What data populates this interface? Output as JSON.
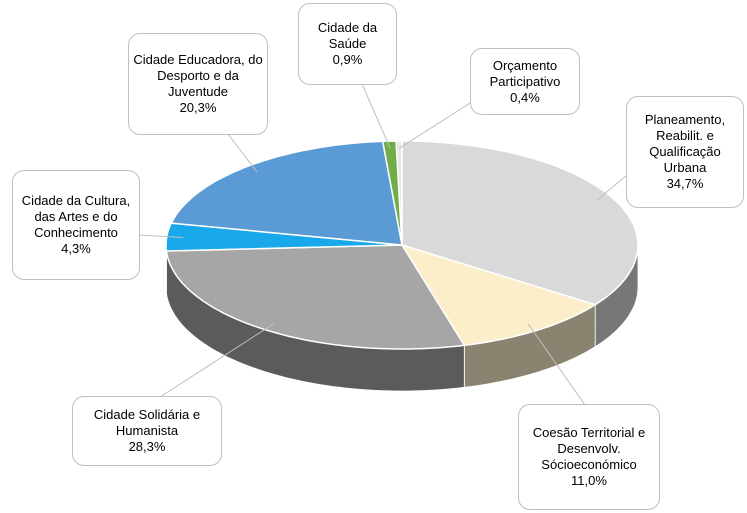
{
  "chart_data": {
    "type": "pie",
    "categories": [
      "Planeamento, Reabilit. e Qualificação Urbana",
      "Coesão Territorial e Desenvolv. Sócioeconómico",
      "Cidade Solidária e Humanista",
      "Cidade da Cultura, das Artes e do Conhecimento",
      "Cidade Educadora, do Desporto e da Juventude",
      "Cidade da Saúde",
      "Orçamento Participativo"
    ],
    "values": [
      34.7,
      11.0,
      28.3,
      4.3,
      20.3,
      0.9,
      0.4
    ],
    "value_labels": [
      "34,7%",
      "11,0%",
      "28,3%",
      "4,3%",
      "20,3%",
      "0,9%",
      "0,4%"
    ],
    "colors": [
      "#d9d9d9",
      "#fbeec9",
      "#a6a6a6",
      "#19a9ea",
      "#5b9bd5",
      "#70ad47",
      "#e6e6e6"
    ]
  }
}
